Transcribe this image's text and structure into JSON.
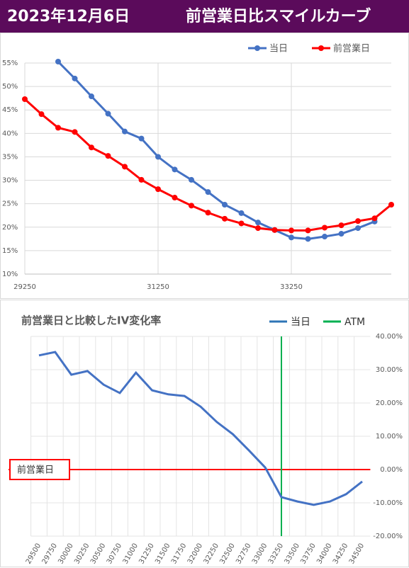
{
  "header": {
    "date": "2023年12月6日",
    "title": "前営業日比スマイルカーブ"
  },
  "chart_data": [
    {
      "type": "line",
      "x": [
        29250,
        29500,
        29750,
        30000,
        30250,
        30500,
        30750,
        31000,
        31250,
        31500,
        31750,
        32000,
        32250,
        32500,
        32750,
        33000,
        33250,
        33500,
        33750,
        34000,
        34250,
        34500,
        34750
      ],
      "xlim": [
        29250,
        34750
      ],
      "xticks": [
        29250,
        31250,
        33250
      ],
      "ylim": [
        10,
        55
      ],
      "yticks": [
        {
          "value": 10,
          "label": "10%"
        },
        {
          "value": 15,
          "label": "15%"
        },
        {
          "value": 20,
          "label": "20%"
        },
        {
          "value": 25,
          "label": "25%"
        },
        {
          "value": 30,
          "label": "30%"
        },
        {
          "value": 35,
          "label": "35%"
        },
        {
          "value": 40,
          "label": "40%"
        },
        {
          "value": 45,
          "label": "45%"
        },
        {
          "value": 50,
          "label": "50%"
        },
        {
          "value": 55,
          "label": "55%"
        }
      ],
      "grid": true,
      "series": [
        {
          "name": "当日",
          "color": "#4472c4",
          "values": [
            null,
            null,
            55.3,
            51.7,
            47.9,
            44.2,
            40.4,
            38.9,
            35.0,
            32.3,
            30.1,
            27.5,
            24.8,
            23.0,
            21.0,
            19.4,
            17.8,
            17.5,
            18.0,
            18.6,
            19.8,
            21.2,
            null
          ]
        },
        {
          "name": "前営業日",
          "color": "#ff0000",
          "values": [
            47.3,
            44.1,
            41.2,
            40.3,
            37.0,
            35.2,
            32.9,
            30.1,
            28.1,
            26.3,
            24.6,
            23.1,
            21.8,
            20.8,
            19.8,
            19.4,
            19.3,
            19.3,
            19.9,
            20.4,
            21.3,
            21.9,
            24.8
          ]
        }
      ]
    },
    {
      "type": "line",
      "title": "前営業日と比較したIV変化率",
      "categories": [
        "29500",
        "29750",
        "30000",
        "30250",
        "30500",
        "30750",
        "31000",
        "31250",
        "31500",
        "31750",
        "32000",
        "32250",
        "32500",
        "32750",
        "33000",
        "33250",
        "33500",
        "33750",
        "34000",
        "34250",
        "34500"
      ],
      "ylim": [
        -20,
        40
      ],
      "yticks": [
        {
          "value": -20,
          "label": "-20.00%"
        },
        {
          "value": -10,
          "label": "-10.00%"
        },
        {
          "value": 0,
          "label": "0.00%"
        },
        {
          "value": 10,
          "label": "10.00%"
        },
        {
          "value": 20,
          "label": "20.00%"
        },
        {
          "value": 30,
          "label": "30.00%"
        },
        {
          "value": 40,
          "label": "40.00%"
        }
      ],
      "grid": true,
      "series": [
        {
          "name": "当日",
          "color": "#4472c4",
          "legend_color": "#2e75b6",
          "values": [
            34.3,
            35.3,
            28.5,
            29.6,
            25.5,
            23.0,
            29.1,
            23.8,
            22.6,
            22.1,
            18.9,
            14.3,
            10.6,
            5.7,
            0.6,
            -8.3,
            -9.6,
            -10.6,
            -9.6,
            -7.4,
            -3.6
          ]
        }
      ],
      "atm": {
        "name": "ATM",
        "category": "33250",
        "color": "#00b050"
      },
      "reference_line": {
        "label": "前営業日",
        "value": 0,
        "color": "#ff0000"
      }
    }
  ]
}
